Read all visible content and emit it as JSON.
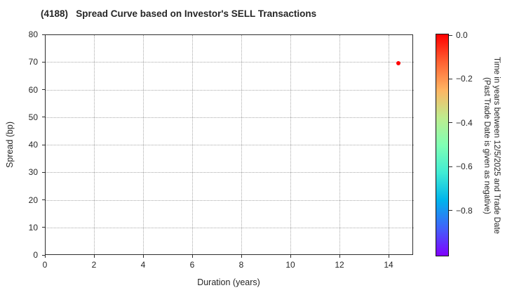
{
  "chart_data": {
    "type": "scatter",
    "title": "(4188)   Spread Curve based on Investor's SELL Transactions",
    "xlabel": "Duration (years)",
    "ylabel": "Spread (bp)",
    "xlim": [
      0,
      15
    ],
    "ylim": [
      0,
      80
    ],
    "xticks": [
      0,
      2,
      4,
      6,
      8,
      10,
      12,
      14
    ],
    "yticks": [
      0,
      10,
      20,
      30,
      40,
      50,
      60,
      70,
      80
    ],
    "grid": true,
    "legend_position": "none",
    "points": [
      {
        "x": 14.4,
        "y": 69.5,
        "color_value": 0.0,
        "color": "#ff0000"
      }
    ],
    "colorbar": {
      "title_line1": "Time in years between 12/5/2025 and Trade Date",
      "title_line2": "(Past Trade Date is given as negative)",
      "tick_labels": [
        "0.0",
        "−0.2",
        "−0.4",
        "−0.6",
        "−0.8"
      ],
      "tick_values": [
        0.0,
        -0.2,
        -0.4,
        -0.6,
        -0.8
      ],
      "vmax": 0.0,
      "vmin": -1.0,
      "colormap": "rainbow",
      "gradient_top_to_bottom": [
        "#ff0000",
        "#ff6232",
        "#ffb462",
        "#bfec8e",
        "#80ffb4",
        "#40ecd4",
        "#00b4ec",
        "#4062fa",
        "#8000ff"
      ]
    }
  }
}
